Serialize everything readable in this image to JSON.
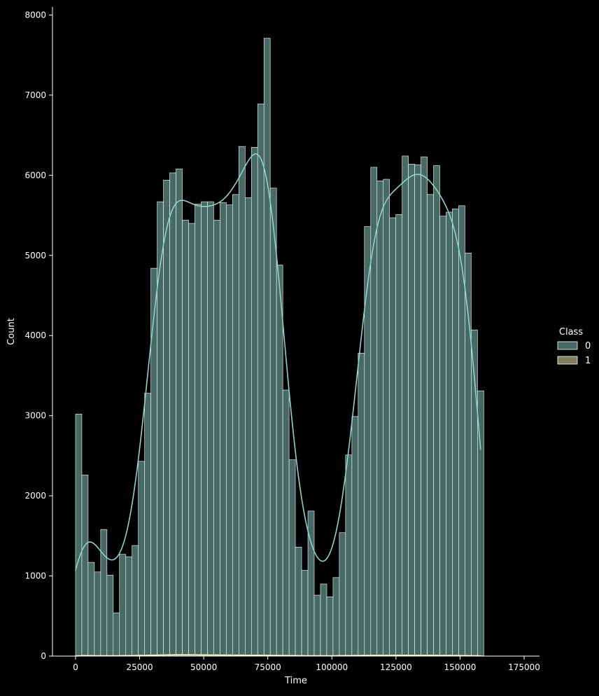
{
  "chart_data": {
    "type": "histogram",
    "xlabel": "Time",
    "ylabel": "Count",
    "xlim": [
      -9000,
      181000
    ],
    "ylim": [
      0,
      8100
    ],
    "xticks": [
      0,
      25000,
      50000,
      75000,
      100000,
      125000,
      150000,
      175000
    ],
    "yticks": [
      0,
      1000,
      2000,
      3000,
      4000,
      5000,
      6000,
      7000,
      8000
    ],
    "bin_start": 0,
    "bin_width": 2450,
    "legend": {
      "title": "Class",
      "position": "right",
      "entries": [
        "0",
        "1"
      ]
    },
    "series": [
      {
        "name": "0",
        "color": "#8dd3c7",
        "kde": true,
        "values": [
          3020,
          2260,
          1170,
          1050,
          1580,
          1010,
          540,
          1270,
          1240,
          1380,
          2430,
          3280,
          4840,
          5670,
          5940,
          6030,
          6080,
          5440,
          5400,
          5640,
          5670,
          5670,
          5440,
          5660,
          5630,
          5760,
          6360,
          5720,
          6350,
          6890,
          7710,
          5840,
          4880,
          3320,
          2450,
          1360,
          1070,
          1810,
          760,
          900,
          740,
          980,
          1540,
          2510,
          2990,
          3780,
          5360,
          6100,
          5930,
          5950,
          5470,
          5510,
          6240,
          6140,
          6130,
          6230,
          5760,
          6120,
          5490,
          5540,
          5580,
          5620,
          5030,
          4070,
          3310
        ]
      },
      {
        "name": "1",
        "color": "#ffffb3",
        "kde": true,
        "values": [
          6,
          10,
          4,
          3,
          5,
          3,
          2,
          4,
          5,
          6,
          8,
          10,
          12,
          14,
          15,
          16,
          18,
          17,
          16,
          15,
          14,
          14,
          13,
          13,
          12,
          12,
          11,
          11,
          10,
          10,
          10,
          9,
          8,
          7,
          6,
          5,
          4,
          3,
          3,
          3,
          3,
          4,
          5,
          6,
          7,
          8,
          9,
          10,
          10,
          10,
          10,
          10,
          10,
          10,
          10,
          10,
          9,
          9,
          9,
          8,
          8,
          7,
          6,
          5,
          4
        ]
      }
    ]
  }
}
